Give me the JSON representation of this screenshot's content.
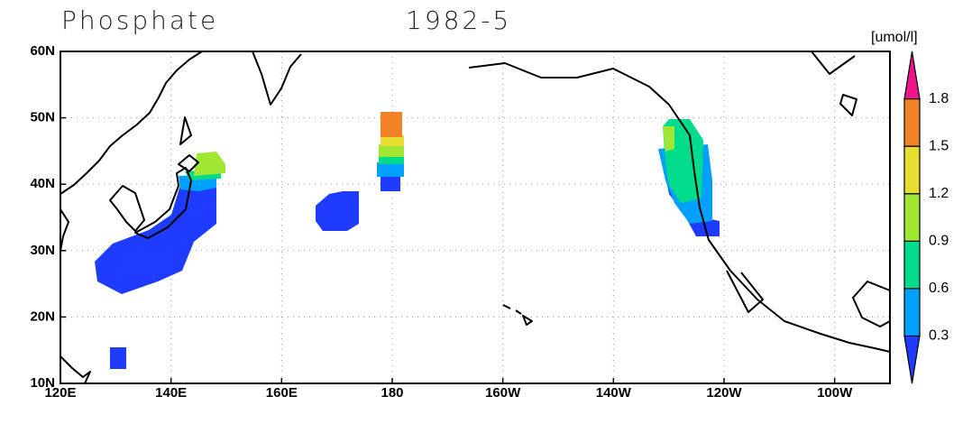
{
  "header": {
    "title": "Phosphate",
    "date": "1982-5",
    "unit": "[umol/l]"
  },
  "map": {
    "lonlim": [
      120,
      270
    ],
    "latlim": [
      10,
      60
    ],
    "grid": true,
    "lon_ticks": [
      {
        "value": 120,
        "label": "120E"
      },
      {
        "value": 140,
        "label": "140E"
      },
      {
        "value": 160,
        "label": "160E"
      },
      {
        "value": 180,
        "label": "180"
      },
      {
        "value": 200,
        "label": "160W"
      },
      {
        "value": 220,
        "label": "140W"
      },
      {
        "value": 240,
        "label": "120W"
      },
      {
        "value": 260,
        "label": "100W"
      }
    ],
    "lat_ticks": [
      {
        "value": 10,
        "label": "10N"
      },
      {
        "value": 20,
        "label": "20N"
      },
      {
        "value": 30,
        "label": "30N"
      },
      {
        "value": 40,
        "label": "40N"
      },
      {
        "value": 50,
        "label": "50N"
      },
      {
        "value": 60,
        "label": "60N"
      }
    ]
  },
  "colorbar": {
    "levels": [
      0.3,
      0.6,
      0.9,
      1.2,
      1.5,
      1.8
    ],
    "colors": [
      "#1e3cff",
      "#00a0ff",
      "#00dc8c",
      "#a0e632",
      "#e6dc32",
      "#f08228",
      "#f0148c"
    ]
  }
}
